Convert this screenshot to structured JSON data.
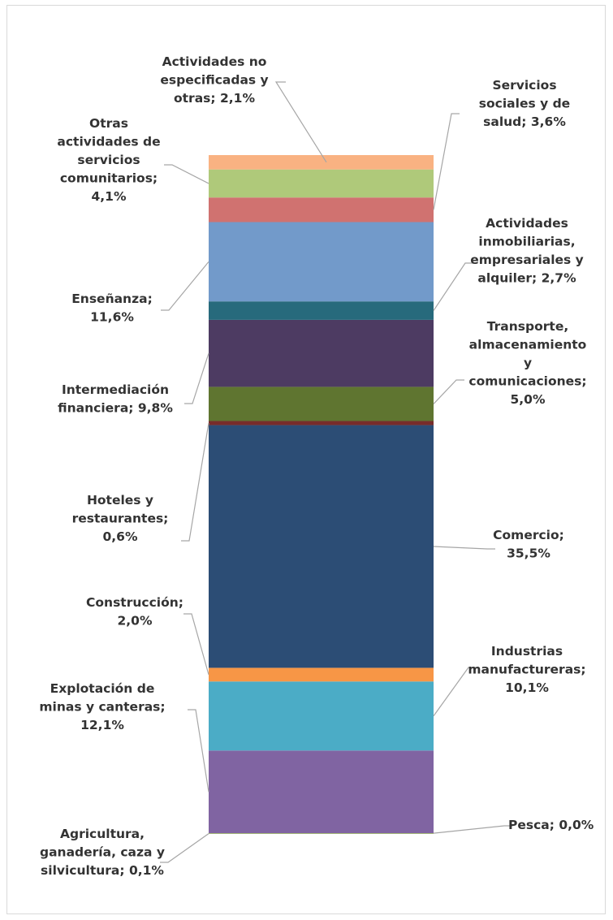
{
  "chart_data": {
    "type": "bar",
    "stacked": true,
    "orientation": "vertical",
    "grid": false,
    "legend": "none",
    "data_label_format": "{name}; {value}%",
    "series": [
      {
        "name": "Agricultura, ganadería, caza y silvicultura",
        "value": 0.1,
        "label": "Agricultura, ganadería, caza y silvicultura; 0,1%",
        "color": "#9bbb59"
      },
      {
        "name": "Pesca",
        "value": 0.0,
        "label": "Pesca; 0,0%",
        "color": "#9bbb59"
      },
      {
        "name": "Explotación de minas y canteras",
        "value": 12.1,
        "label": "Explotación de minas y canteras; 12,1%",
        "color": "#8064a2"
      },
      {
        "name": "Industrias manufactureras",
        "value": 10.1,
        "label": "Industrias manufactureras; 10,1%",
        "color": "#4bacc6"
      },
      {
        "name": "Construcción",
        "value": 2.0,
        "label": "Construcción; 2,0%",
        "color": "#f79646"
      },
      {
        "name": "Comercio",
        "value": 35.5,
        "label": "Comercio; 35,5%",
        "color": "#2c4d75"
      },
      {
        "name": "Hoteles y restaurantes",
        "value": 0.6,
        "label": "Hoteles y restaurantes; 0,6%",
        "color": "#772c2a"
      },
      {
        "name": "Transporte, almacenamiento y comunicaciones",
        "value": 5.0,
        "label": "Transporte, almacenamiento y comunicaciones; 5,0%",
        "color": "#5f7530"
      },
      {
        "name": "Intermediación financiera",
        "value": 9.8,
        "label": "Intermediación financiera; 9,8%",
        "color": "#4d3b62"
      },
      {
        "name": "Actividades inmobiliarias, empresariales y alquiler",
        "value": 2.7,
        "label": "Actividades inmobiliarias, empresariales y alquiler; 2,7%",
        "color": "#276a7c"
      },
      {
        "name": "Enseñanza",
        "value": 11.6,
        "label": "Enseñanza; 11,6%",
        "color": "#729aca"
      },
      {
        "name": "Servicios sociales y de salud",
        "value": 3.6,
        "label": "Servicios sociales y de salud; 3,6%",
        "color": "#d07270"
      },
      {
        "name": "Otras actividades de servicios comunitarios",
        "value": 4.1,
        "label": "Otras actividades de servicios comunitarios; 4,1%",
        "color": "#afc97a"
      },
      {
        "name": "Actividades no especificadas y otras",
        "value": 2.1,
        "label": "Actividades no especificadas y otras; 2,1%",
        "color": "#f9b282"
      }
    ]
  }
}
